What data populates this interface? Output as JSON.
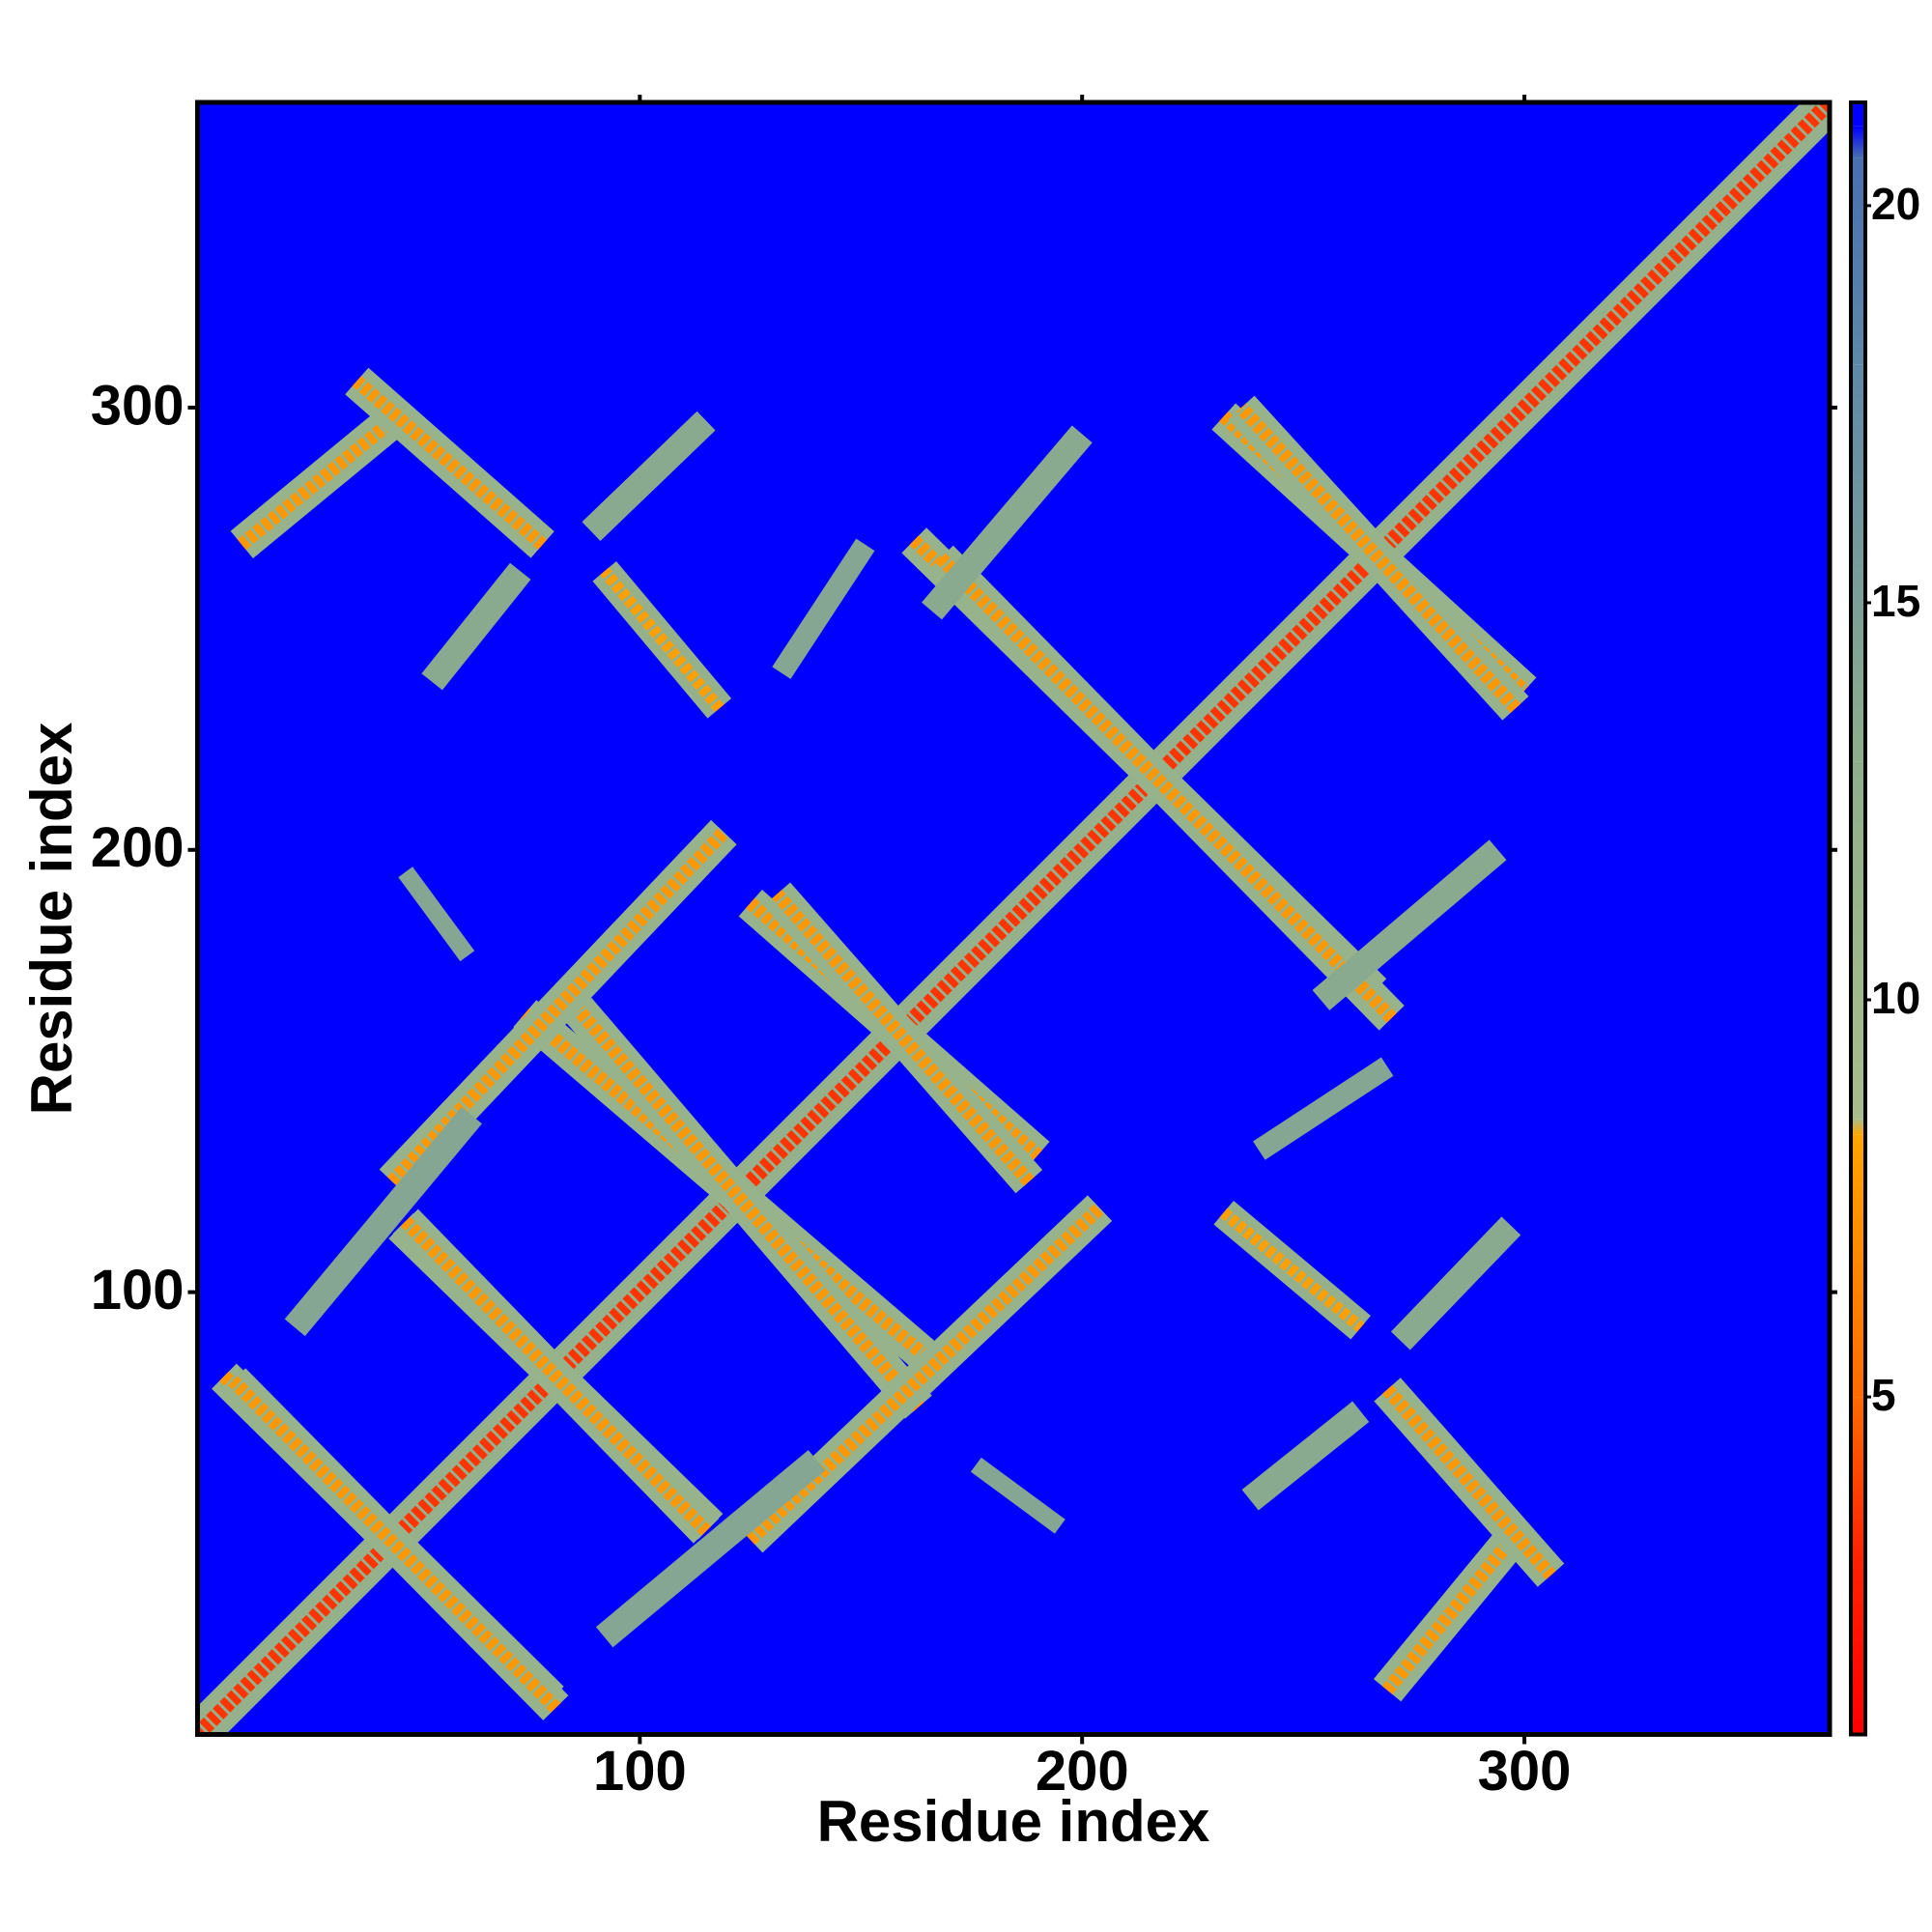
{
  "chart_data": {
    "type": "heatmap",
    "xlabel": "Residue index",
    "ylabel": "Residue index",
    "xlim": [
      0,
      369
    ],
    "ylim": [
      0,
      369
    ],
    "xticks": [
      100,
      200,
      300
    ],
    "yticks": [
      100,
      200,
      300
    ],
    "symmetric": true,
    "background_distance": 21.3,
    "colorbar_lim": [
      0.75,
      21.3
    ],
    "colorbar_ticks": [
      5,
      10,
      15,
      20
    ],
    "colorscale": [
      {
        "value": 0.75,
        "color": "#ff0000"
      },
      {
        "value": 3,
        "color": "#ff2200"
      },
      {
        "value": 5,
        "color": "#ff6a00"
      },
      {
        "value": 8.3,
        "color": "#ffa500"
      },
      {
        "value": 8.5,
        "color": "#a8bd8a"
      },
      {
        "value": 13,
        "color": "#8fae8c"
      },
      {
        "value": 18,
        "color": "#5f88a8"
      },
      {
        "value": 20.6,
        "color": "#4a6fb0"
      },
      {
        "value": 21,
        "color": "#0000ff"
      }
    ],
    "bands": [
      {
        "start": [
          0,
          0
        ],
        "end": [
          369,
          369
        ],
        "width": 9,
        "distance": 12,
        "min_distance": 3.5
      },
      {
        "start": [
          6,
          81
        ],
        "end": [
          80,
          8
        ],
        "width": 8,
        "distance": 11.5,
        "min_distance": 7.5
      },
      {
        "start": [
          46,
          115
        ],
        "end": [
          116,
          47
        ],
        "width": 8,
        "distance": 11.5,
        "min_distance": 7.5
      },
      {
        "start": [
          74,
          163
        ],
        "end": [
          164,
          86
        ],
        "width": 8,
        "distance": 11.5,
        "min_distance": 7.5
      },
      {
        "start": [
          125,
          188
        ],
        "end": [
          190,
          131
        ],
        "width": 8,
        "distance": 11.5,
        "min_distance": 7.5
      },
      {
        "start": [
          162,
          270
        ],
        "end": [
          266,
          168
        ],
        "width": 8,
        "distance": 11.5,
        "min_distance": 7.5
      },
      {
        "start": [
          232,
          298
        ],
        "end": [
          300,
          236
        ],
        "width": 8,
        "distance": 11.5,
        "min_distance": 7.5
      },
      {
        "start": [
          125,
          44
        ],
        "end": [
          204,
          119
        ],
        "width": 8,
        "distance": 11.5,
        "min_distance": 7.5
      },
      {
        "start": [
          269,
          10
        ],
        "end": [
          297,
          44
        ],
        "width": 8,
        "distance": 11.5,
        "min_distance": 7.5
      },
      {
        "start": [
          269,
          78
        ],
        "end": [
          306,
          36
        ],
        "width": 8,
        "distance": 11.5,
        "min_distance": 7.5
      },
      {
        "start": [
          232,
          118
        ],
        "end": [
          263,
          92
        ],
        "width": 7,
        "distance": 12,
        "min_distance": 8
      },
      {
        "start": [
          272,
          89
        ],
        "end": [
          297,
          115
        ],
        "width": 6,
        "distance": 13.5
      },
      {
        "start": [
          254,
          166
        ],
        "end": [
          294,
          200
        ],
        "width": 6,
        "distance": 13.5
      },
      {
        "start": [
          238,
          53
        ],
        "end": [
          263,
          73
        ],
        "width": 6,
        "distance": 13.5
      },
      {
        "start": [
          240,
          132
        ],
        "end": [
          269,
          151
        ],
        "width": 5,
        "distance": 14
      },
      {
        "start": [
          176,
          61
        ],
        "end": [
          195,
          47
        ],
        "width": 4,
        "distance": 14
      },
      {
        "start": [
          92,
          22
        ],
        "end": [
          140,
          62
        ],
        "width": 6,
        "distance": 14
      }
    ]
  }
}
